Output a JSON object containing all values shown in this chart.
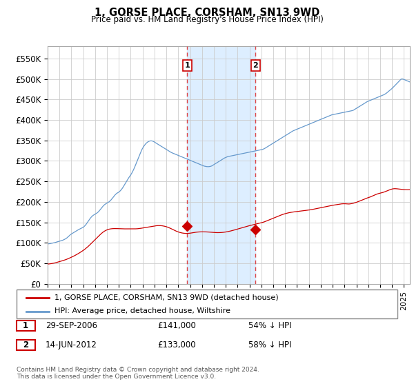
{
  "title": "1, GORSE PLACE, CORSHAM, SN13 9WD",
  "subtitle": "Price paid vs. HM Land Registry's House Price Index (HPI)",
  "hpi_color": "#6699cc",
  "price_color": "#cc0000",
  "sale1_date_num": 2006.75,
  "sale2_date_num": 2012.5,
  "sale1_price": 141000,
  "sale2_price": 133000,
  "annotation_bg": "#ddeeff",
  "vline_color": "#dd4444",
  "legend_line1": "1, GORSE PLACE, CORSHAM, SN13 9WD (detached house)",
  "legend_line2": "HPI: Average price, detached house, Wiltshire",
  "footnote": "Contains HM Land Registry data © Crown copyright and database right 2024.\nThis data is licensed under the Open Government Licence v3.0.",
  "ylim": [
    0,
    580000
  ],
  "yticks": [
    0,
    50000,
    100000,
    150000,
    200000,
    250000,
    300000,
    350000,
    400000,
    450000,
    500000,
    550000
  ],
  "ytick_labels": [
    "£0",
    "£50K",
    "£100K",
    "£150K",
    "£200K",
    "£250K",
    "£300K",
    "£350K",
    "£400K",
    "£450K",
    "£500K",
    "£550K"
  ],
  "hpi_data_monthly": [
    97000,
    97500,
    97800,
    98200,
    98800,
    99200,
    99800,
    100200,
    101000,
    101800,
    102500,
    103200,
    103800,
    104500,
    105200,
    106000,
    107000,
    108200,
    109500,
    111000,
    113000,
    115200,
    117500,
    119800,
    121500,
    123000,
    124500,
    126000,
    127500,
    129000,
    130500,
    131800,
    133000,
    134200,
    135300,
    136500,
    138000,
    140000,
    142500,
    145500,
    149000,
    152500,
    156000,
    159500,
    162500,
    165000,
    167000,
    168500,
    170000,
    171500,
    173000,
    175000,
    177500,
    180500,
    183500,
    186500,
    189500,
    192000,
    194000,
    195500,
    197000,
    198500,
    200000,
    202000,
    204500,
    207500,
    210500,
    213500,
    216500,
    219000,
    221000,
    222500,
    224000,
    226000,
    228500,
    231500,
    235000,
    239000,
    243000,
    247000,
    251000,
    255000,
    259000,
    262500,
    266000,
    270000,
    274500,
    279500,
    285000,
    291000,
    297000,
    303000,
    309000,
    315000,
    321000,
    326500,
    331000,
    335000,
    338500,
    341500,
    344000,
    346000,
    347500,
    348500,
    349000,
    349000,
    348500,
    347500,
    346000,
    344500,
    343000,
    341500,
    340000,
    338500,
    337000,
    335500,
    334000,
    332500,
    331000,
    329500,
    328000,
    326500,
    325000,
    323500,
    322000,
    320500,
    319500,
    318500,
    317500,
    316500,
    315500,
    314500,
    313500,
    312500,
    311500,
    310500,
    309500,
    308500,
    307500,
    306500,
    305500,
    304500,
    303500,
    302500,
    301500,
    300500,
    299500,
    298500,
    297500,
    296500,
    295500,
    294500,
    293500,
    292500,
    291500,
    290500,
    289500,
    288500,
    287500,
    287000,
    286500,
    286000,
    286000,
    286000,
    286500,
    287000,
    288000,
    289500,
    291000,
    292500,
    294000,
    295500,
    297000,
    298500,
    300000,
    301500,
    303000,
    304500,
    306000,
    307500,
    308500,
    309500,
    310500,
    311000,
    311500,
    312000,
    312500,
    313000,
    313500,
    314000,
    314500,
    315000,
    315500,
    316000,
    316500,
    317000,
    317500,
    318000,
    318500,
    319000,
    319500,
    320000,
    320500,
    321000,
    321500,
    322000,
    322500,
    323000,
    323500,
    324000,
    324500,
    325000,
    325500,
    326000,
    326500,
    327000,
    327500,
    328000,
    329000,
    330000,
    331500,
    333000,
    334500,
    336000,
    337500,
    339000,
    340500,
    342000,
    343500,
    345000,
    346500,
    348000,
    349500,
    351000,
    352500,
    354000,
    355500,
    357000,
    358500,
    360000,
    361500,
    363000,
    364500,
    366000,
    367500,
    369000,
    370500,
    372000,
    373500,
    374500,
    375500,
    376500,
    377500,
    378500,
    379500,
    380500,
    381500,
    382500,
    383500,
    384500,
    385500,
    386500,
    387500,
    388500,
    389500,
    390500,
    391500,
    392500,
    393500,
    394500,
    395500,
    396500,
    397500,
    398500,
    399500,
    400500,
    401500,
    402500,
    403500,
    404500,
    405500,
    406500,
    407500,
    408500,
    409500,
    410500,
    411500,
    412500,
    413000,
    413500,
    414000,
    414500,
    415000,
    415500,
    416000,
    416500,
    417000,
    417500,
    418000,
    418500,
    419000,
    419500,
    420000,
    420500,
    421000,
    421500,
    422000,
    422500,
    423000,
    424000,
    425500,
    427000,
    428500,
    430000,
    431500,
    433000,
    434500,
    436000,
    437500,
    439000,
    440500,
    442000,
    443500,
    445000,
    446000,
    447000,
    448000,
    449000,
    450000,
    451000,
    452000,
    453000,
    454000,
    455000,
    456000,
    457000,
    458000,
    459000,
    460000,
    461000,
    462000,
    463500,
    465000,
    467000,
    469000,
    471000,
    473000,
    475000,
    477000,
    479500,
    482000,
    484500,
    487000,
    489500,
    492000,
    494500,
    497000,
    499500,
    500500,
    500000,
    499000,
    498000,
    497000,
    496000,
    495000,
    494000,
    493000,
    492000,
    491000,
    490000,
    489000,
    488000,
    487000,
    486500,
    486000,
    485500,
    485000,
    484500,
    484000,
    483500,
    483000,
    483000,
    483000,
    483500
  ],
  "price_data_monthly": [
    48000,
    48200,
    48500,
    48800,
    49200,
    49600,
    50100,
    50600,
    51200,
    51900,
    52600,
    53300,
    54000,
    54700,
    55400,
    56100,
    56900,
    57700,
    58500,
    59400,
    60400,
    61400,
    62500,
    63600,
    64700,
    65800,
    67000,
    68200,
    69500,
    70800,
    72200,
    73600,
    75100,
    76600,
    78200,
    79800,
    81500,
    83200,
    85000,
    87000,
    89000,
    91200,
    93500,
    95800,
    98200,
    100600,
    103000,
    105400,
    107800,
    110200,
    112600,
    115000,
    117400,
    119800,
    122000,
    124100,
    126000,
    127700,
    129200,
    130500,
    131600,
    132500,
    133200,
    133700,
    134100,
    134400,
    134600,
    134700,
    134700,
    134700,
    134700,
    134600,
    134500,
    134400,
    134300,
    134200,
    134100,
    134000,
    134000,
    134000,
    134000,
    134000,
    134000,
    134000,
    134000,
    134000,
    134000,
    134000,
    134000,
    134100,
    134200,
    134400,
    134700,
    135000,
    135300,
    135700,
    136100,
    136500,
    136900,
    137300,
    137700,
    138100,
    138500,
    138900,
    139300,
    139700,
    140100,
    140500,
    140900,
    141300,
    141700,
    141900,
    142000,
    142000,
    141900,
    141700,
    141400,
    141000,
    140500,
    139900,
    139200,
    138400,
    137500,
    136500,
    135400,
    134200,
    133000,
    131800,
    130600,
    129500,
    128400,
    127400,
    126500,
    125700,
    125000,
    124400,
    123900,
    123500,
    123200,
    123000,
    122900,
    122900,
    123000,
    123200,
    123500,
    123900,
    124300,
    124700,
    125100,
    125500,
    125800,
    126100,
    126300,
    126500,
    126600,
    126700,
    126700,
    126700,
    126700,
    126700,
    126600,
    126500,
    126400,
    126200,
    126000,
    125800,
    125600,
    125400,
    125200,
    125000,
    124900,
    124800,
    124800,
    124800,
    124900,
    125000,
    125200,
    125400,
    125700,
    126000,
    126400,
    126800,
    127300,
    127800,
    128300,
    128900,
    129500,
    130100,
    130800,
    131500,
    132200,
    132900,
    133600,
    134300,
    135000,
    135700,
    136400,
    137100,
    137800,
    138500,
    139200,
    139900,
    140600,
    141200,
    141800,
    142400,
    143000,
    143600,
    144200,
    144800,
    145400,
    146000,
    146600,
    147200,
    147800,
    148400,
    149000,
    149700,
    150400,
    151200,
    152100,
    153100,
    154100,
    155100,
    156100,
    157100,
    158100,
    159100,
    160100,
    161100,
    162100,
    163100,
    164100,
    165100,
    166100,
    167000,
    167900,
    168800,
    169600,
    170400,
    171100,
    171800,
    172400,
    173000,
    173500,
    174000,
    174400,
    174800,
    175200,
    175500,
    175800,
    176100,
    176400,
    176700,
    177000,
    177300,
    177600,
    177900,
    178200,
    178500,
    178800,
    179100,
    179400,
    179700,
    180000,
    180400,
    180800,
    181200,
    181700,
    182200,
    182700,
    183200,
    183700,
    184200,
    184700,
    185200,
    185700,
    186200,
    186700,
    187200,
    187700,
    188200,
    188700,
    189200,
    189700,
    190200,
    190700,
    191200,
    191600,
    192000,
    192400,
    192800,
    193200,
    193600,
    194000,
    194400,
    194800,
    195100,
    195300,
    195400,
    195400,
    195300,
    195100,
    194900,
    194800,
    194900,
    195200,
    195600,
    196100,
    196700,
    197400,
    198100,
    198900,
    199800,
    200700,
    201700,
    202700,
    203700,
    204700,
    205700,
    206700,
    207700,
    208700,
    209500,
    210300,
    211100,
    212000,
    213000,
    214000,
    215100,
    216200,
    217300,
    218300,
    219200,
    220000,
    220700,
    221300,
    221900,
    222500,
    223200,
    224000,
    224900,
    225900,
    226900,
    227900,
    228900,
    229800,
    230600,
    231300,
    231800,
    232100,
    232200,
    232100,
    231900,
    231600,
    231300,
    231000,
    230700,
    230400,
    230100,
    229900,
    229700,
    229600,
    229500,
    229500,
    229600,
    229700,
    229900,
    230100,
    230300,
    230500,
    230700,
    230900,
    231100,
    231300,
    231400,
    231500,
    231600,
    231700,
    231800,
    231900,
    232000,
    232100,
    232200
  ]
}
